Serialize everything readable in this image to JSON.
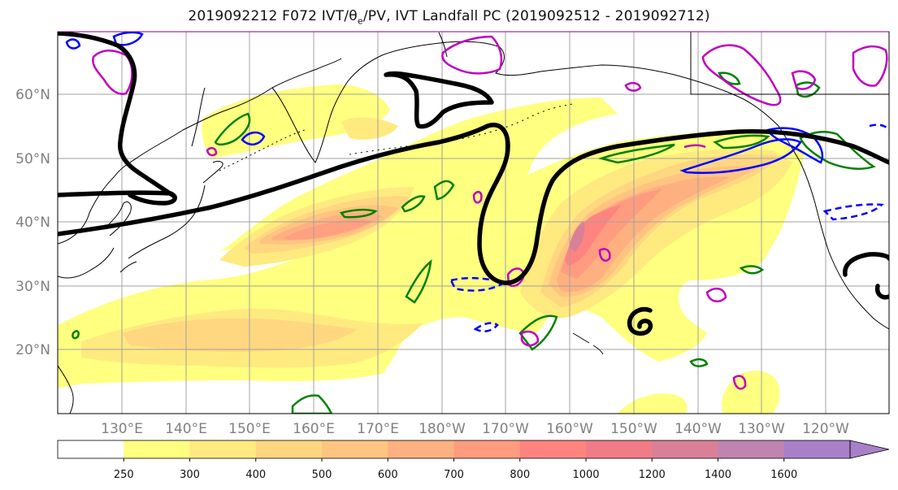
{
  "title_parts": {
    "prefix": "2019092212 F072 IVT/θ",
    "sub": "e",
    "suffix": "/PV, IVT Landfall PC (2019092512 - 2019092712)"
  },
  "map": {
    "projection": "PlateCarree",
    "lon_range_east": [
      120,
      250
    ],
    "lat_range": [
      10,
      70
    ],
    "latitude_labels": [
      "20°N",
      "30°N",
      "40°N",
      "50°N",
      "60°N"
    ],
    "longitude_labels": [
      "130°E",
      "140°E",
      "150°E",
      "160°E",
      "170°E",
      "180°W",
      "170°W",
      "160°W",
      "150°W",
      "140°W",
      "130°W",
      "120°W"
    ],
    "gridlines": true,
    "coastlines": true,
    "inset_box": true
  },
  "ivt_colorbar": {
    "units_shown": false,
    "levels": [
      250,
      300,
      400,
      500,
      600,
      700,
      800,
      1000,
      1200,
      1400,
      1600
    ],
    "tick_labels": [
      "250",
      "300",
      "400",
      "500",
      "600",
      "700",
      "800",
      "1000",
      "1200",
      "1400",
      "1600"
    ],
    "colors": [
      "#ffffff",
      "#ffff80",
      "#ffea80",
      "#ffd780",
      "#ffc480",
      "#ffb080",
      "#ff9c80",
      "#ff8480",
      "#f07c88",
      "#d98098",
      "#c084b0",
      "#a880c8"
    ],
    "extend": "max",
    "extend_color": "#a880c8"
  },
  "contours": {
    "theta_e_pv_black": "#000000",
    "green": "#008000",
    "blue": "#0000ff",
    "magenta": "#bf00bf"
  }
}
